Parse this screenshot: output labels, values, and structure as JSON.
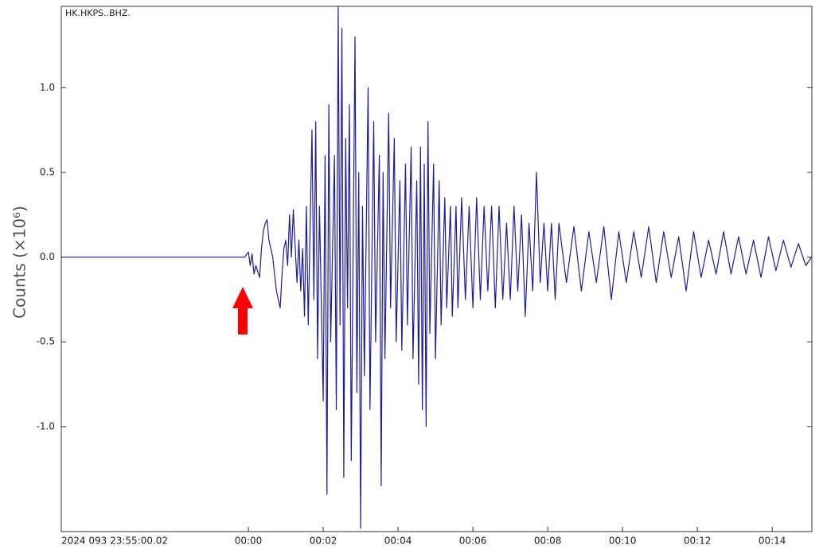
{
  "chart_data": {
    "type": "line",
    "annotation": "HK.HKPS..BHZ.",
    "y_label": "Counts (×10⁶)",
    "x": [
      -5,
      -0.1,
      0,
      0.05,
      0.1,
      0.15,
      0.2,
      0.3,
      0.35,
      0.4,
      0.45,
      0.5,
      0.55,
      0.6,
      0.65,
      0.7,
      0.75,
      0.8,
      0.85,
      0.9,
      0.95,
      1,
      1.05,
      1.1,
      1.15,
      1.2,
      1.3,
      1.35,
      1.4,
      1.45,
      1.5,
      1.55,
      1.6,
      1.7,
      1.75,
      1.8,
      1.85,
      1.9,
      2,
      2.05,
      2.1,
      2.15,
      2.2,
      2.3,
      2.35,
      2.4,
      2.45,
      2.5,
      2.55,
      2.6,
      2.65,
      2.7,
      2.75,
      2.85,
      2.9,
      2.95,
      3,
      3.05,
      3.1,
      3.2,
      3.25,
      3.35,
      3.4,
      3.5,
      3.55,
      3.6,
      3.65,
      3.75,
      3.8,
      3.9,
      3.95,
      4.05,
      4.1,
      4.2,
      4.25,
      4.35,
      4.4,
      4.5,
      4.55,
      4.6,
      4.65,
      4.7,
      4.75,
      4.8,
      4.85,
      4.95,
      5,
      5.1,
      5.15,
      5.25,
      5.3,
      5.4,
      5.45,
      5.55,
      5.6,
      5.7,
      5.8,
      5.9,
      6,
      6.1,
      6.2,
      6.3,
      6.4,
      6.5,
      6.6,
      6.7,
      6.8,
      6.9,
      7,
      7.1,
      7.2,
      7.3,
      7.4,
      7.5,
      7.6,
      7.7,
      7.8,
      7.9,
      8,
      8.1,
      8.2,
      8.3,
      8.5,
      8.7,
      8.9,
      9.1,
      9.3,
      9.5,
      9.7,
      9.9,
      10.1,
      10.3,
      10.5,
      10.7,
      10.9,
      11.1,
      11.3,
      11.5,
      11.7,
      11.9,
      12.1,
      12.3,
      12.5,
      12.7,
      12.9,
      13.1,
      13.3,
      13.5,
      13.7,
      13.9,
      14.1,
      14.3,
      14.5,
      14.7,
      14.9,
      15.05
    ],
    "series": [
      {
        "color": "#1c1c9a",
        "values": [
          0,
          0,
          0.03,
          -0.05,
          0.02,
          -0.1,
          -0.05,
          -0.12,
          0.05,
          0.15,
          0.2,
          0.22,
          0.1,
          0.05,
          0,
          -0.1,
          -0.2,
          -0.25,
          -0.3,
          -0.1,
          0.05,
          0.1,
          -0.05,
          0.25,
          0,
          0.28,
          -0.15,
          0.1,
          -0.2,
          0.05,
          -0.35,
          0.3,
          -0.4,
          0.75,
          -0.25,
          0.8,
          -0.6,
          0.3,
          -0.85,
          0.6,
          -1.4,
          0.9,
          -0.5,
          0.6,
          -0.9,
          1.48,
          -0.4,
          1.35,
          -1.3,
          0.7,
          -0.3,
          0.9,
          -1.2,
          1.3,
          -0.8,
          0.5,
          -1.6,
          0.3,
          -0.7,
          1,
          -0.9,
          0.8,
          -0.5,
          0.6,
          -1.35,
          0.5,
          -0.6,
          0.85,
          -0.3,
          0.7,
          -0.5,
          0.45,
          -0.55,
          0.55,
          -0.4,
          0.65,
          -0.6,
          0.45,
          -0.75,
          0.65,
          -0.9,
          0.55,
          -1,
          0.8,
          -0.45,
          0.55,
          -0.6,
          0.45,
          -0.4,
          0.35,
          -0.3,
          0.3,
          -0.35,
          0.3,
          -0.3,
          0.35,
          -0.25,
          0.3,
          -0.3,
          0.35,
          -0.25,
          0.3,
          -0.2,
          0.3,
          -0.3,
          0.3,
          -0.25,
          0.2,
          -0.25,
          0.3,
          -0.2,
          0.25,
          -0.35,
          0.2,
          -0.2,
          0.5,
          -0.15,
          0.2,
          -0.2,
          0.2,
          -0.25,
          0.2,
          -0.15,
          0.18,
          -0.2,
          0.15,
          -0.15,
          0.18,
          -0.25,
          0.15,
          -0.15,
          0.15,
          -0.12,
          0.18,
          -0.15,
          0.15,
          -0.12,
          0.12,
          -0.2,
          0.15,
          -0.12,
          0.1,
          -0.1,
          0.15,
          -0.1,
          0.12,
          -0.1,
          0.1,
          -0.12,
          0.12,
          -0.08,
          0.1,
          -0.06,
          0.08,
          -0.05,
          0
        ]
      }
    ],
    "xlim": [
      -5,
      15.06
    ],
    "xticks": [
      {
        "value": -5,
        "label": "2024 093 23:55:00.02"
      },
      {
        "value": 0,
        "label": "00:00"
      },
      {
        "value": 2,
        "label": "00:02"
      },
      {
        "value": 4,
        "label": "00:04"
      },
      {
        "value": 6,
        "label": "00:06"
      },
      {
        "value": 8,
        "label": "00:08"
      },
      {
        "value": 10,
        "label": "00:10"
      },
      {
        "value": 12,
        "label": "00:12"
      },
      {
        "value": 14,
        "label": "00:14"
      }
    ],
    "ylim": [
      -1.62,
      1.48
    ],
    "yticks": [
      {
        "value": 1,
        "label": "1.0"
      },
      0.5,
      {
        "value": 0,
        "label": "0.0"
      },
      -0.5,
      {
        "value": -1,
        "label": "-1.0"
      }
    ],
    "grid": false
  }
}
